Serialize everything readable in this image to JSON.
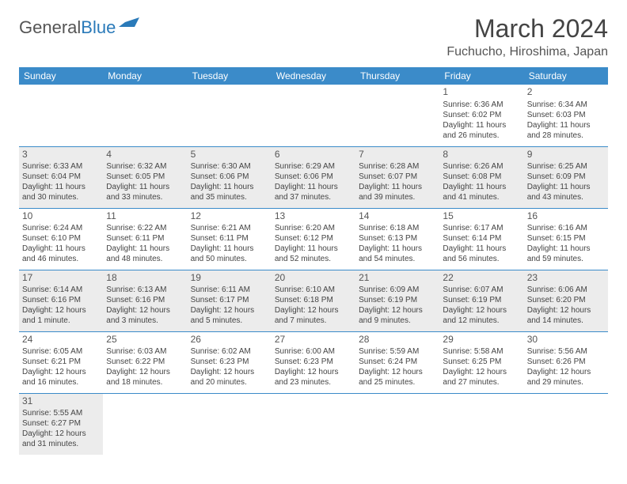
{
  "logo": {
    "text1": "General",
    "text2": "Blue"
  },
  "title": "March 2024",
  "location": "Fuchucho, Hiroshima, Japan",
  "colors": {
    "header_bg": "#3b8bc9",
    "header_fg": "#ffffff",
    "shade_bg": "#ececec",
    "border": "#3b8bc9",
    "logo_gray": "#555555",
    "logo_blue": "#2a7ab9"
  },
  "day_names": [
    "Sunday",
    "Monday",
    "Tuesday",
    "Wednesday",
    "Thursday",
    "Friday",
    "Saturday"
  ],
  "weeks": [
    [
      {
        "blank": true
      },
      {
        "blank": true
      },
      {
        "blank": true
      },
      {
        "blank": true
      },
      {
        "blank": true
      },
      {
        "n": "1",
        "sr": "Sunrise: 6:36 AM",
        "ss": "Sunset: 6:02 PM",
        "dl": "Daylight: 11 hours and 26 minutes."
      },
      {
        "n": "2",
        "sr": "Sunrise: 6:34 AM",
        "ss": "Sunset: 6:03 PM",
        "dl": "Daylight: 11 hours and 28 minutes."
      }
    ],
    [
      {
        "n": "3",
        "sr": "Sunrise: 6:33 AM",
        "ss": "Sunset: 6:04 PM",
        "dl": "Daylight: 11 hours and 30 minutes.",
        "shade": true
      },
      {
        "n": "4",
        "sr": "Sunrise: 6:32 AM",
        "ss": "Sunset: 6:05 PM",
        "dl": "Daylight: 11 hours and 33 minutes.",
        "shade": true
      },
      {
        "n": "5",
        "sr": "Sunrise: 6:30 AM",
        "ss": "Sunset: 6:06 PM",
        "dl": "Daylight: 11 hours and 35 minutes.",
        "shade": true
      },
      {
        "n": "6",
        "sr": "Sunrise: 6:29 AM",
        "ss": "Sunset: 6:06 PM",
        "dl": "Daylight: 11 hours and 37 minutes.",
        "shade": true
      },
      {
        "n": "7",
        "sr": "Sunrise: 6:28 AM",
        "ss": "Sunset: 6:07 PM",
        "dl": "Daylight: 11 hours and 39 minutes.",
        "shade": true
      },
      {
        "n": "8",
        "sr": "Sunrise: 6:26 AM",
        "ss": "Sunset: 6:08 PM",
        "dl": "Daylight: 11 hours and 41 minutes.",
        "shade": true
      },
      {
        "n": "9",
        "sr": "Sunrise: 6:25 AM",
        "ss": "Sunset: 6:09 PM",
        "dl": "Daylight: 11 hours and 43 minutes.",
        "shade": true
      }
    ],
    [
      {
        "n": "10",
        "sr": "Sunrise: 6:24 AM",
        "ss": "Sunset: 6:10 PM",
        "dl": "Daylight: 11 hours and 46 minutes."
      },
      {
        "n": "11",
        "sr": "Sunrise: 6:22 AM",
        "ss": "Sunset: 6:11 PM",
        "dl": "Daylight: 11 hours and 48 minutes."
      },
      {
        "n": "12",
        "sr": "Sunrise: 6:21 AM",
        "ss": "Sunset: 6:11 PM",
        "dl": "Daylight: 11 hours and 50 minutes."
      },
      {
        "n": "13",
        "sr": "Sunrise: 6:20 AM",
        "ss": "Sunset: 6:12 PM",
        "dl": "Daylight: 11 hours and 52 minutes."
      },
      {
        "n": "14",
        "sr": "Sunrise: 6:18 AM",
        "ss": "Sunset: 6:13 PM",
        "dl": "Daylight: 11 hours and 54 minutes."
      },
      {
        "n": "15",
        "sr": "Sunrise: 6:17 AM",
        "ss": "Sunset: 6:14 PM",
        "dl": "Daylight: 11 hours and 56 minutes."
      },
      {
        "n": "16",
        "sr": "Sunrise: 6:16 AM",
        "ss": "Sunset: 6:15 PM",
        "dl": "Daylight: 11 hours and 59 minutes."
      }
    ],
    [
      {
        "n": "17",
        "sr": "Sunrise: 6:14 AM",
        "ss": "Sunset: 6:16 PM",
        "dl": "Daylight: 12 hours and 1 minute.",
        "shade": true
      },
      {
        "n": "18",
        "sr": "Sunrise: 6:13 AM",
        "ss": "Sunset: 6:16 PM",
        "dl": "Daylight: 12 hours and 3 minutes.",
        "shade": true
      },
      {
        "n": "19",
        "sr": "Sunrise: 6:11 AM",
        "ss": "Sunset: 6:17 PM",
        "dl": "Daylight: 12 hours and 5 minutes.",
        "shade": true
      },
      {
        "n": "20",
        "sr": "Sunrise: 6:10 AM",
        "ss": "Sunset: 6:18 PM",
        "dl": "Daylight: 12 hours and 7 minutes.",
        "shade": true
      },
      {
        "n": "21",
        "sr": "Sunrise: 6:09 AM",
        "ss": "Sunset: 6:19 PM",
        "dl": "Daylight: 12 hours and 9 minutes.",
        "shade": true
      },
      {
        "n": "22",
        "sr": "Sunrise: 6:07 AM",
        "ss": "Sunset: 6:19 PM",
        "dl": "Daylight: 12 hours and 12 minutes.",
        "shade": true
      },
      {
        "n": "23",
        "sr": "Sunrise: 6:06 AM",
        "ss": "Sunset: 6:20 PM",
        "dl": "Daylight: 12 hours and 14 minutes.",
        "shade": true
      }
    ],
    [
      {
        "n": "24",
        "sr": "Sunrise: 6:05 AM",
        "ss": "Sunset: 6:21 PM",
        "dl": "Daylight: 12 hours and 16 minutes."
      },
      {
        "n": "25",
        "sr": "Sunrise: 6:03 AM",
        "ss": "Sunset: 6:22 PM",
        "dl": "Daylight: 12 hours and 18 minutes."
      },
      {
        "n": "26",
        "sr": "Sunrise: 6:02 AM",
        "ss": "Sunset: 6:23 PM",
        "dl": "Daylight: 12 hours and 20 minutes."
      },
      {
        "n": "27",
        "sr": "Sunrise: 6:00 AM",
        "ss": "Sunset: 6:23 PM",
        "dl": "Daylight: 12 hours and 23 minutes."
      },
      {
        "n": "28",
        "sr": "Sunrise: 5:59 AM",
        "ss": "Sunset: 6:24 PM",
        "dl": "Daylight: 12 hours and 25 minutes."
      },
      {
        "n": "29",
        "sr": "Sunrise: 5:58 AM",
        "ss": "Sunset: 6:25 PM",
        "dl": "Daylight: 12 hours and 27 minutes."
      },
      {
        "n": "30",
        "sr": "Sunrise: 5:56 AM",
        "ss": "Sunset: 6:26 PM",
        "dl": "Daylight: 12 hours and 29 minutes."
      }
    ],
    [
      {
        "n": "31",
        "sr": "Sunrise: 5:55 AM",
        "ss": "Sunset: 6:27 PM",
        "dl": "Daylight: 12 hours and 31 minutes.",
        "shade": true
      },
      {
        "blank": true
      },
      {
        "blank": true
      },
      {
        "blank": true
      },
      {
        "blank": true
      },
      {
        "blank": true
      },
      {
        "blank": true
      }
    ]
  ]
}
